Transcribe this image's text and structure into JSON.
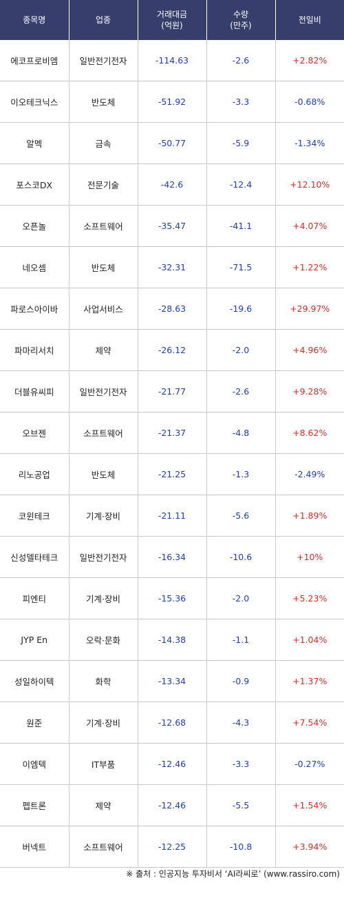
{
  "headers": {
    "name": "종목명",
    "sector": "업종",
    "amount_line1": "거래대금",
    "amount_line2": "(억원)",
    "volume_line1": "수량",
    "volume_line2": "(만주)",
    "change": "전일비"
  },
  "rows": [
    {
      "name": "에코프로비엠",
      "sector": "일반전기전자",
      "amount": "-114.63",
      "volume": "-2.6",
      "change": "+2.82%"
    },
    {
      "name": "이오테크닉스",
      "sector": "반도체",
      "amount": "-51.92",
      "volume": "-3.3",
      "change": "-0.68%"
    },
    {
      "name": "알멕",
      "sector": "금속",
      "amount": "-50.77",
      "volume": "-5.9",
      "change": "-1.34%"
    },
    {
      "name": "포스코DX",
      "sector": "전문기술",
      "amount": "-42.6",
      "volume": "-12.4",
      "change": "+12.10%"
    },
    {
      "name": "오픈놀",
      "sector": "소프트웨어",
      "amount": "-35.47",
      "volume": "-41.1",
      "change": "+4.07%"
    },
    {
      "name": "네오셈",
      "sector": "반도체",
      "amount": "-32.31",
      "volume": "-71.5",
      "change": "+1.22%"
    },
    {
      "name": "파로스아이바",
      "sector": "사업서비스",
      "amount": "-28.63",
      "volume": "-19.6",
      "change": "+29.97%"
    },
    {
      "name": "파마리서치",
      "sector": "제약",
      "amount": "-26.12",
      "volume": "-2.0",
      "change": "+4.96%"
    },
    {
      "name": "더블유씨피",
      "sector": "일반전기전자",
      "amount": "-21.77",
      "volume": "-2.6",
      "change": "+9.28%"
    },
    {
      "name": "오브젠",
      "sector": "소프트웨어",
      "amount": "-21.37",
      "volume": "-4.8",
      "change": "+8.62%"
    },
    {
      "name": "리노공업",
      "sector": "반도체",
      "amount": "-21.25",
      "volume": "-1.3",
      "change": "-2.49%"
    },
    {
      "name": "코윈테크",
      "sector": "기계·장비",
      "amount": "-21.11",
      "volume": "-5.6",
      "change": "+1.89%"
    },
    {
      "name": "신성델타테크",
      "sector": "일반전기전자",
      "amount": "-16.34",
      "volume": "-10.6",
      "change": "+10%"
    },
    {
      "name": "피엔티",
      "sector": "기계·장비",
      "amount": "-15.36",
      "volume": "-2.0",
      "change": "+5.23%"
    },
    {
      "name": "JYP En",
      "sector": "오락·문화",
      "amount": "-14.38",
      "volume": "-1.1",
      "change": "+1.04%"
    },
    {
      "name": "성일하이텍",
      "sector": "화학",
      "amount": "-13.34",
      "volume": "-0.9",
      "change": "+1.37%"
    },
    {
      "name": "원준",
      "sector": "기계·장비",
      "amount": "-12.68",
      "volume": "-4.3",
      "change": "+7.54%"
    },
    {
      "name": "이엠텍",
      "sector": "IT부품",
      "amount": "-12.46",
      "volume": "-3.3",
      "change": "-0.27%"
    },
    {
      "name": "펩트론",
      "sector": "제약",
      "amount": "-12.46",
      "volume": "-5.5",
      "change": "+1.54%"
    },
    {
      "name": "버넥트",
      "sector": "소프트웨어",
      "amount": "-12.25",
      "volume": "-10.8",
      "change": "+3.94%"
    }
  ],
  "source": "※ 출처 : 인공지능 투자비서 ‘AI라씨로’ (www.rassiro.com)",
  "colors": {
    "header_bg": "#363f6b",
    "negative": "#1f3fa8",
    "positive": "#d72828"
  }
}
